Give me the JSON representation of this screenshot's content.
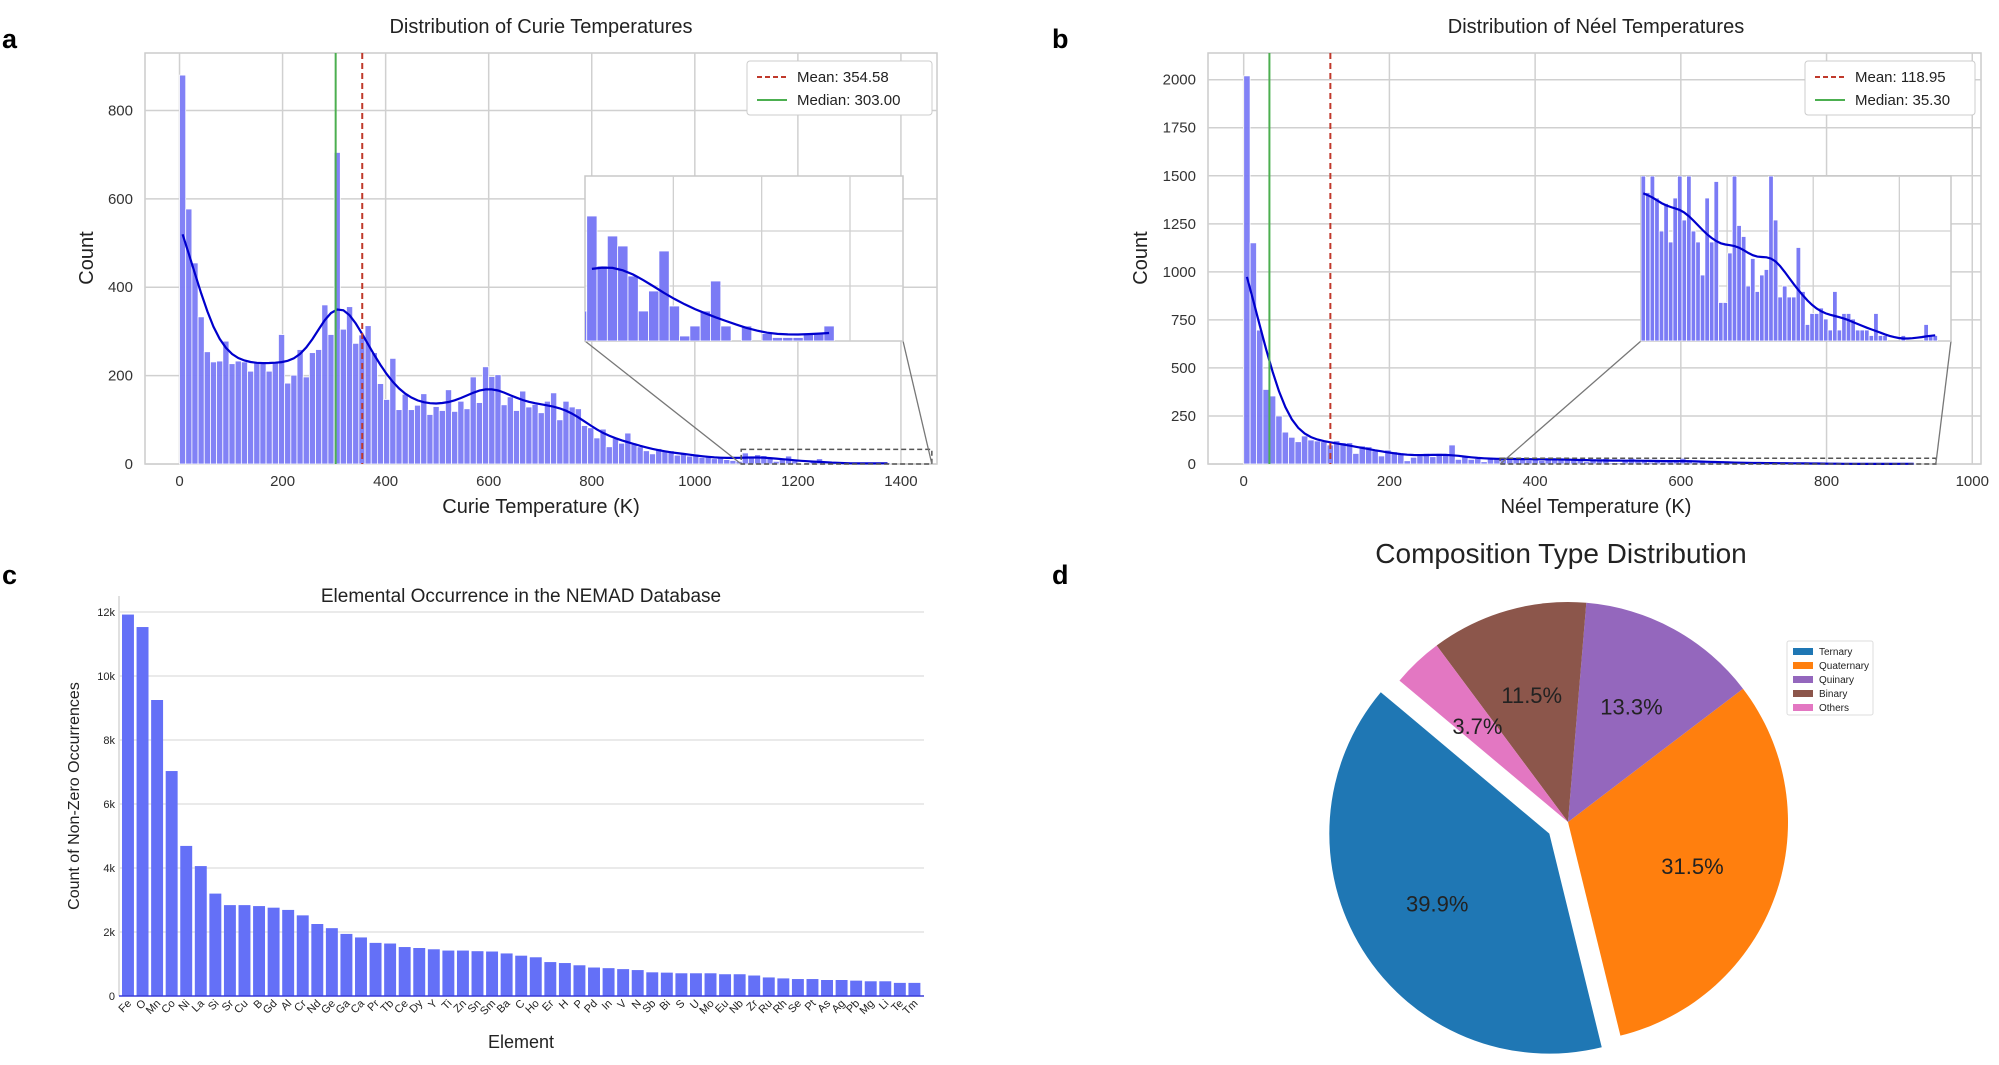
{
  "panels": {
    "a": "a",
    "b": "b",
    "c": "c",
    "d": "d"
  },
  "chart_data": [
    {
      "type": "histogram",
      "title": "Distribution of Curie Temperatures",
      "xlabel": "Curie Temperature (K)",
      "ylabel": "Count",
      "bin_width": 12,
      "bin_start": 0,
      "counts": [
        880,
        577,
        455,
        333,
        254,
        231,
        233,
        278,
        227,
        233,
        231,
        210,
        231,
        227,
        210,
        231,
        293,
        183,
        201,
        259,
        197,
        252,
        259,
        360,
        293,
        705,
        305,
        356,
        273,
        292,
        313,
        252,
        182,
        146,
        239,
        123,
        158,
        123,
        133,
        159,
        112,
        130,
        121,
        168,
        119,
        142,
        125,
        197,
        139,
        220,
        198,
        202,
        134,
        152,
        121,
        165,
        129,
        135,
        116,
        142,
        161,
        100,
        142,
        129,
        125,
        87,
        82,
        59,
        79,
        39,
        58,
        47,
        70,
        45,
        39,
        30,
        23,
        35,
        28,
        30,
        20,
        25,
        18,
        22,
        15,
        18,
        12,
        14,
        10,
        8,
        6,
        25,
        15,
        21,
        19,
        13,
        6,
        10,
        18,
        7,
        1,
        3,
        6,
        12,
        3,
        0,
        3,
        0,
        1.5,
        0.7,
        0.7,
        0.7,
        1.5,
        1.5,
        3
      ],
      "kde": true,
      "xlim": [
        -67,
        1470
      ],
      "ylim": [
        0,
        930
      ],
      "xticks": [
        0,
        200,
        400,
        600,
        800,
        1000,
        1200,
        1400
      ],
      "yticks": [
        0,
        200,
        400,
        600,
        800
      ],
      "grid": true,
      "color": "#7b7bf5",
      "kde_color": "#0000cc",
      "mean": {
        "value": 354.58,
        "label": "Mean: 354.58",
        "color": "#c0392b"
      },
      "median": {
        "value": 303.0,
        "label": "Median: 303.00",
        "color": "#4caf50"
      },
      "legend_position": "top-right",
      "inset": {
        "xlim": [
          1090,
          1460
        ],
        "ylim": [
          0,
          33
        ]
      }
    },
    {
      "type": "histogram",
      "title": "Distribution of Néel Temperatures",
      "xlabel": "Néel Temperature (K)",
      "ylabel": "Count",
      "bin_width": 8.8,
      "bin_start": 0,
      "counts": [
        2020,
        1151,
        697,
        388,
        354,
        250,
        166,
        139,
        116,
        146,
        125,
        120,
        116,
        99,
        121,
        111,
        111,
        55,
        94,
        90,
        69,
        42,
        73,
        64,
        55,
        17,
        35,
        42,
        55,
        38,
        55,
        47,
        99,
        24,
        38,
        24,
        28,
        12,
        29,
        30,
        30,
        27,
        30,
        26,
        20,
        25,
        18,
        26,
        30,
        22,
        30,
        20,
        18,
        12,
        26,
        18,
        29,
        7,
        7,
        16,
        30,
        21,
        19,
        10,
        15,
        9,
        12,
        13,
        30,
        22,
        8,
        10,
        8,
        8,
        17,
        9,
        3,
        5,
        5,
        6,
        4,
        2,
        9,
        2,
        5,
        5,
        4,
        2,
        2,
        2,
        1,
        5,
        1,
        1,
        0,
        0,
        0,
        1,
        0,
        0,
        0,
        0,
        3,
        1,
        1
      ],
      "kde": true,
      "xlim": [
        -49,
        1012
      ],
      "ylim": [
        0,
        2139
      ],
      "xticks": [
        0,
        200,
        400,
        600,
        800,
        1000
      ],
      "yticks": [
        0,
        250,
        500,
        750,
        1000,
        1250,
        1500,
        1750,
        2000
      ],
      "grid": true,
      "color": "#7b7bf5",
      "kde_color": "#0000cc",
      "mean": {
        "value": 118.95,
        "label": "Mean: 118.95",
        "color": "#c0392b"
      },
      "median": {
        "value": 35.3,
        "label": "Median: 35.30",
        "color": "#4caf50"
      },
      "legend_position": "top-right",
      "inset": {
        "xlim": [
          352,
          950
        ],
        "ylim": [
          0,
          30
        ]
      }
    },
    {
      "type": "bar",
      "title": "Elemental Occurrence in the NEMAD Database",
      "xlabel": "Element",
      "ylabel": "Count of Non-Zero Occurrences",
      "categories": [
        "Fe",
        "O",
        "Mn",
        "Co",
        "Ni",
        "La",
        "Si",
        "Sr",
        "Cu",
        "B",
        "Gd",
        "Al",
        "Cr",
        "Nd",
        "Ge",
        "Ga",
        "Ca",
        "Pr",
        "Tb",
        "Ce",
        "Dy",
        "Y",
        "Ti",
        "Zn",
        "Sn",
        "Sm",
        "Ba",
        "C",
        "Ho",
        "Er",
        "H",
        "P",
        "Pd",
        "In",
        "V",
        "N",
        "Sb",
        "Bi",
        "S",
        "U",
        "Mo",
        "Eu",
        "Nb",
        "Zr",
        "Ru",
        "Rh",
        "Se",
        "Pt",
        "As",
        "Ag",
        "Pb",
        "Mg",
        "Li",
        "Te",
        "Tm"
      ],
      "values": [
        11920,
        11530,
        9250,
        7030,
        4690,
        4060,
        3200,
        2840,
        2840,
        2810,
        2760,
        2690,
        2520,
        2250,
        2120,
        1940,
        1830,
        1660,
        1640,
        1530,
        1500,
        1460,
        1420,
        1420,
        1400,
        1390,
        1330,
        1260,
        1210,
        1060,
        1030,
        960,
        890,
        870,
        840,
        810,
        740,
        730,
        710,
        710,
        710,
        680,
        680,
        640,
        580,
        550,
        530,
        530,
        500,
        500,
        480,
        460,
        460,
        410,
        410
      ],
      "ylim": [
        0,
        12500
      ],
      "yticks": [
        0,
        2000,
        4000,
        6000,
        8000,
        10000,
        12000
      ],
      "ytick_labels": [
        "0",
        "2k",
        "4k",
        "6k",
        "8k",
        "10k",
        "12k"
      ],
      "grid": "horizontal",
      "color": "#6470f7"
    },
    {
      "type": "pie",
      "title": "Composition Type Distribution",
      "labels": [
        "Ternary",
        "Quaternary",
        "Quinary",
        "Binary",
        "Others"
      ],
      "values": [
        39.9,
        31.5,
        13.3,
        11.5,
        3.7
      ],
      "value_labels": [
        "39.9%",
        "31.5%",
        "13.3%",
        "11.5%",
        "3.7%"
      ],
      "colors": [
        "#1f77b4",
        "#ff7f0e",
        "#9467bd",
        "#8c564b",
        "#e377c2"
      ],
      "exploded": "Ternary",
      "start_angle": 140,
      "legend_position": "right"
    }
  ]
}
